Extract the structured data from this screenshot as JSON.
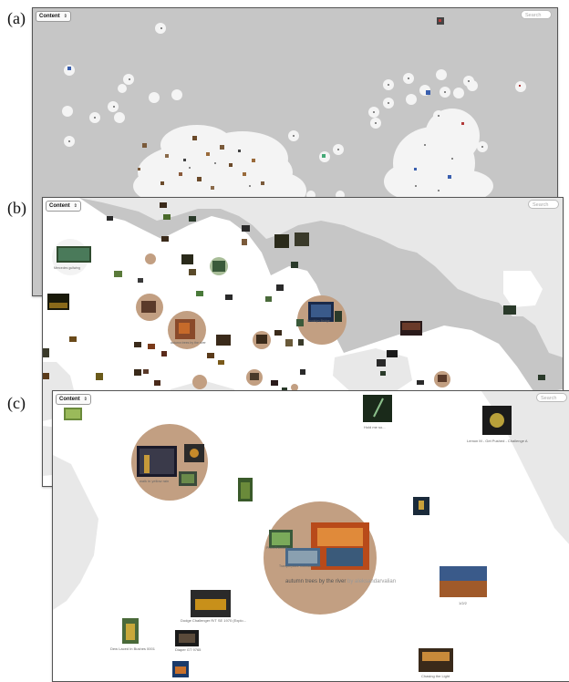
{
  "panels": {
    "a": {
      "label": "(a)",
      "dropdown": "Content",
      "search_placeholder": "Search"
    },
    "b": {
      "label": "(b)",
      "dropdown": "Content",
      "search_placeholder": "Search",
      "captions": [
        "Mercedes gullwing",
        "autumn trees by the river",
        "Brooklyn Bridge"
      ]
    },
    "c": {
      "label": "(c)",
      "dropdown": "Content",
      "search_placeholder": "Search",
      "captions": {
        "hold_me": "Hold me so...",
        "lemon": "Lemon M - Get Pushed - Challenge A",
        "walk": "walk in yellow rain",
        "green": "PhotoShootout",
        "trees_small": "Tranquil place Colorado River",
        "main_title": "autumn trees by the river",
        "main_by": "by aleksandarvalian",
        "dodge": "Dodge Challenger R/T SE 1970 (Explo...",
        "g1": "1/2/2",
        "bottle": "Dew Laced In Bushes 0001",
        "cat": "Diaper GT 9765",
        "chasing": "Chasing the Light"
      }
    }
  },
  "colors": {
    "map_grey": "#c6c6c6",
    "light_grey": "#e8e8e8",
    "cluster_tan": "#c29f82",
    "cluster_green": "#a8bd98",
    "dot_blue": "#3a5fae",
    "dot_red": "#b23a3a"
  }
}
